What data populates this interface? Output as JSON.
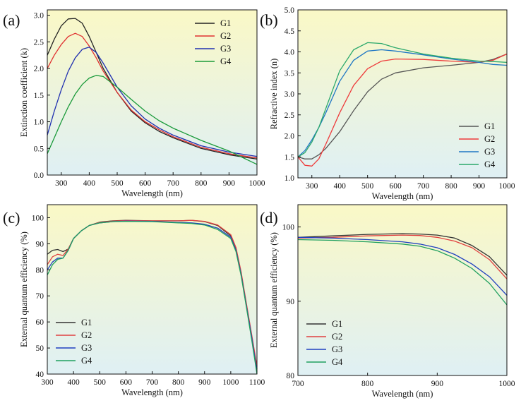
{
  "chart_data": [
    {
      "type": "line",
      "panel_label": "(a)",
      "xlabel": "Wavelength (nm)",
      "ylabel": "Extinction coefficient (k)",
      "xlim": [
        250,
        1000
      ],
      "ylim": [
        0,
        3.1
      ],
      "xticks": [
        300,
        400,
        500,
        600,
        700,
        800,
        900,
        1000
      ],
      "yticks": [
        0.0,
        0.5,
        1.0,
        1.5,
        2.0,
        2.5,
        3.0
      ],
      "ytick_decimals": 1,
      "legend_position": "top-right",
      "series": [
        {
          "name": "G1",
          "color": "#222222",
          "x": [
            250,
            275,
            300,
            325,
            350,
            375,
            400,
            425,
            450,
            500,
            550,
            600,
            650,
            700,
            800,
            900,
            1000
          ],
          "y": [
            2.25,
            2.55,
            2.8,
            2.93,
            2.94,
            2.85,
            2.6,
            2.3,
            2.0,
            1.55,
            1.2,
            0.98,
            0.82,
            0.7,
            0.5,
            0.38,
            0.3
          ]
        },
        {
          "name": "G2",
          "color": "#e03030",
          "x": [
            250,
            275,
            300,
            325,
            350,
            375,
            400,
            425,
            450,
            500,
            550,
            600,
            650,
            700,
            800,
            900,
            1000
          ],
          "y": [
            2.0,
            2.25,
            2.45,
            2.6,
            2.66,
            2.6,
            2.42,
            2.2,
            1.95,
            1.55,
            1.22,
            1.0,
            0.85,
            0.72,
            0.52,
            0.4,
            0.32
          ]
        },
        {
          "name": "G3",
          "color": "#2030b0",
          "x": [
            250,
            275,
            300,
            325,
            350,
            375,
            400,
            425,
            450,
            500,
            550,
            600,
            650,
            700,
            800,
            900,
            1000
          ],
          "y": [
            0.75,
            1.2,
            1.6,
            1.95,
            2.2,
            2.36,
            2.4,
            2.3,
            2.1,
            1.65,
            1.3,
            1.05,
            0.88,
            0.75,
            0.55,
            0.43,
            0.35
          ]
        },
        {
          "name": "G4",
          "color": "#1a9a3a",
          "x": [
            250,
            275,
            300,
            325,
            350,
            375,
            400,
            425,
            450,
            500,
            550,
            600,
            650,
            700,
            800,
            900,
            1000
          ],
          "y": [
            0.4,
            0.7,
            1.0,
            1.28,
            1.52,
            1.7,
            1.82,
            1.87,
            1.85,
            1.65,
            1.42,
            1.2,
            1.02,
            0.88,
            0.65,
            0.45,
            0.2
          ]
        }
      ]
    },
    {
      "type": "line",
      "panel_label": "(b)",
      "xlabel": "Wavelength (nm)",
      "ylabel": "Refractive index (n)",
      "xlim": [
        250,
        1000
      ],
      "ylim": [
        1.0,
        5.0
      ],
      "xticks": [
        300,
        400,
        500,
        600,
        700,
        800,
        900,
        1000
      ],
      "yticks": [
        1.0,
        1.5,
        2.0,
        2.5,
        3.0,
        3.5,
        4.0,
        4.5,
        5.0
      ],
      "ytick_decimals": 1,
      "legend_position": "bottom-right",
      "series": [
        {
          "name": "G1",
          "color": "#555555",
          "x": [
            250,
            275,
            300,
            325,
            350,
            400,
            450,
            500,
            550,
            600,
            700,
            800,
            900,
            950,
            1000
          ],
          "y": [
            1.5,
            1.45,
            1.45,
            1.55,
            1.7,
            2.1,
            2.6,
            3.05,
            3.35,
            3.5,
            3.62,
            3.68,
            3.75,
            3.82,
            3.95
          ]
        },
        {
          "name": "G2",
          "color": "#ee3b3b",
          "x": [
            250,
            275,
            300,
            325,
            350,
            400,
            450,
            500,
            550,
            600,
            700,
            800,
            900,
            950,
            1000
          ],
          "y": [
            1.5,
            1.3,
            1.28,
            1.45,
            1.8,
            2.55,
            3.2,
            3.6,
            3.78,
            3.83,
            3.82,
            3.78,
            3.75,
            3.8,
            3.95
          ]
        },
        {
          "name": "G3",
          "color": "#1f77c4",
          "x": [
            250,
            275,
            300,
            325,
            350,
            400,
            450,
            500,
            550,
            600,
            700,
            800,
            900,
            950,
            1000
          ],
          "y": [
            1.5,
            1.65,
            1.9,
            2.2,
            2.55,
            3.3,
            3.8,
            4.02,
            4.05,
            4.02,
            3.93,
            3.83,
            3.75,
            3.7,
            3.68
          ]
        },
        {
          "name": "G4",
          "color": "#2aa86b",
          "x": [
            250,
            275,
            300,
            325,
            350,
            400,
            450,
            500,
            550,
            600,
            700,
            800,
            900,
            950,
            1000
          ],
          "y": [
            1.5,
            1.6,
            1.85,
            2.2,
            2.65,
            3.55,
            4.05,
            4.22,
            4.2,
            4.1,
            3.95,
            3.85,
            3.78,
            3.77,
            3.75
          ]
        }
      ]
    },
    {
      "type": "line",
      "panel_label": "(c)",
      "xlabel": "Wavelength (nm)",
      "ylabel": "External quantum efficiency (%)",
      "xlim": [
        300,
        1100
      ],
      "ylim": [
        40,
        105
      ],
      "xticks": [
        300,
        400,
        500,
        600,
        700,
        800,
        900,
        1000,
        1100
      ],
      "yticks": [
        40,
        50,
        60,
        70,
        80,
        90,
        100
      ],
      "ytick_decimals": 0,
      "legend_position": "bottom-left",
      "series": [
        {
          "name": "G1",
          "color": "#333333",
          "x": [
            300,
            320,
            340,
            360,
            380,
            400,
            430,
            460,
            500,
            550,
            600,
            700,
            800,
            850,
            900,
            950,
            1000,
            1020,
            1040,
            1060,
            1080,
            1100
          ],
          "y": [
            86,
            87.5,
            87.8,
            87,
            88,
            92,
            95,
            97,
            98.3,
            98.8,
            99,
            98.8,
            98.8,
            99,
            98.5,
            97,
            93,
            88,
            78,
            66,
            54,
            42
          ]
        },
        {
          "name": "G2",
          "color": "#e04040",
          "x": [
            300,
            320,
            340,
            360,
            380,
            400,
            430,
            460,
            500,
            550,
            600,
            700,
            800,
            850,
            900,
            950,
            1000,
            1020,
            1040,
            1060,
            1080,
            1100
          ],
          "y": [
            82,
            85,
            86,
            85.5,
            88,
            92,
            95,
            97,
            98.2,
            98.7,
            98.9,
            98.8,
            98.8,
            99,
            98.6,
            97.2,
            93.5,
            88.5,
            79,
            67,
            55,
            43
          ]
        },
        {
          "name": "G3",
          "color": "#2040c0",
          "x": [
            300,
            320,
            340,
            360,
            380,
            400,
            430,
            460,
            500,
            550,
            600,
            700,
            800,
            850,
            900,
            950,
            1000,
            1020,
            1040,
            1060,
            1080,
            1100
          ],
          "y": [
            80,
            83,
            84.5,
            84.5,
            87.5,
            92,
            95,
            97,
            98,
            98.5,
            98.7,
            98.6,
            98.2,
            98,
            97.5,
            96,
            92.5,
            87.5,
            78,
            66,
            54,
            41
          ]
        },
        {
          "name": "G4",
          "color": "#20a060",
          "x": [
            300,
            320,
            340,
            360,
            380,
            400,
            430,
            460,
            500,
            550,
            600,
            700,
            800,
            850,
            900,
            950,
            1000,
            1020,
            1040,
            1060,
            1080,
            1100
          ],
          "y": [
            78,
            82,
            84,
            84.5,
            87.5,
            92,
            95,
            97,
            98,
            98.5,
            98.6,
            98.5,
            98,
            97.8,
            97.2,
            95.5,
            92,
            87,
            77.5,
            65.5,
            53,
            40
          ]
        }
      ]
    },
    {
      "type": "line",
      "panel_label": "(d)",
      "xlabel": "Wavelength (nm)",
      "ylabel": "External quantum efficiency (%)",
      "xlim": [
        700,
        1000
      ],
      "ylim": [
        80,
        103
      ],
      "xticks": [
        700,
        800,
        900,
        1000
      ],
      "yticks": [
        80,
        90,
        100
      ],
      "ytick_decimals": 0,
      "legend_position": "bottom-left",
      "series": [
        {
          "name": "G1",
          "color": "#333333",
          "x": [
            700,
            750,
            800,
            850,
            875,
            900,
            925,
            950,
            975,
            1000
          ],
          "y": [
            98.6,
            98.8,
            99,
            99.1,
            99.05,
            98.9,
            98.5,
            97.5,
            96,
            93.5
          ]
        },
        {
          "name": "G2",
          "color": "#e04040",
          "x": [
            700,
            750,
            800,
            850,
            875,
            900,
            925,
            950,
            975,
            1000
          ],
          "y": [
            98.5,
            98.6,
            98.8,
            98.9,
            98.85,
            98.6,
            98.1,
            97.2,
            95.6,
            93
          ]
        },
        {
          "name": "G3",
          "color": "#2040c0",
          "x": [
            700,
            750,
            800,
            850,
            875,
            900,
            925,
            950,
            975,
            1000
          ],
          "y": [
            98.6,
            98.5,
            98.3,
            98,
            97.7,
            97.2,
            96.3,
            95,
            93.3,
            90.8
          ]
        },
        {
          "name": "G4",
          "color": "#20a060",
          "x": [
            700,
            750,
            800,
            850,
            875,
            900,
            925,
            950,
            975,
            1000
          ],
          "y": [
            98.3,
            98.2,
            98,
            97.7,
            97.4,
            96.8,
            95.8,
            94.4,
            92.4,
            89.5
          ]
        }
      ]
    }
  ],
  "colors": {
    "background_top": "#faf8c6",
    "background_bottom": "#dff0f4",
    "axis": "#111111"
  }
}
